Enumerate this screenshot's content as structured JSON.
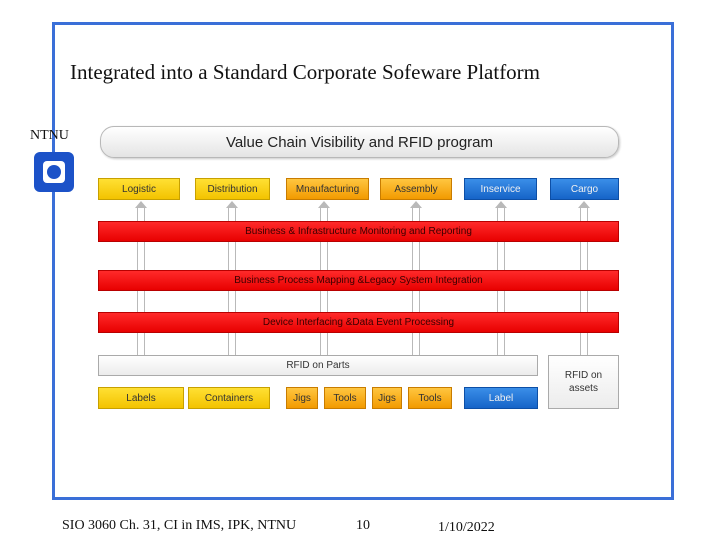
{
  "slide": {
    "title": "Integrated into a Standard Corporate Sofeware Platform",
    "ntnu_label": "NTNU"
  },
  "diagram": {
    "banner": "Value Chain Visibility and RFID program",
    "top_boxes": [
      "Logistic",
      "Distribution",
      "Mnaufacturing",
      "Assembly",
      "Inservice",
      "Cargo"
    ],
    "bars": [
      "Business & Infrastructure Monitoring and Reporting",
      "Business Process Mapping &Legacy System Integration",
      "Device Interfacing &Data Event Processing"
    ],
    "rfid_parts": "RFID on Parts",
    "rfid_assets": "RFID on assets",
    "bottom_boxes": [
      "Labels",
      "Containers",
      "Jigs",
      "Tools",
      "Jigs",
      "Tools",
      "Label"
    ]
  },
  "footer": {
    "course": "SIO 3060 Ch. 31, CI in IMS, IPK, NTNU",
    "page": "10",
    "date": "1/10/2022"
  }
}
